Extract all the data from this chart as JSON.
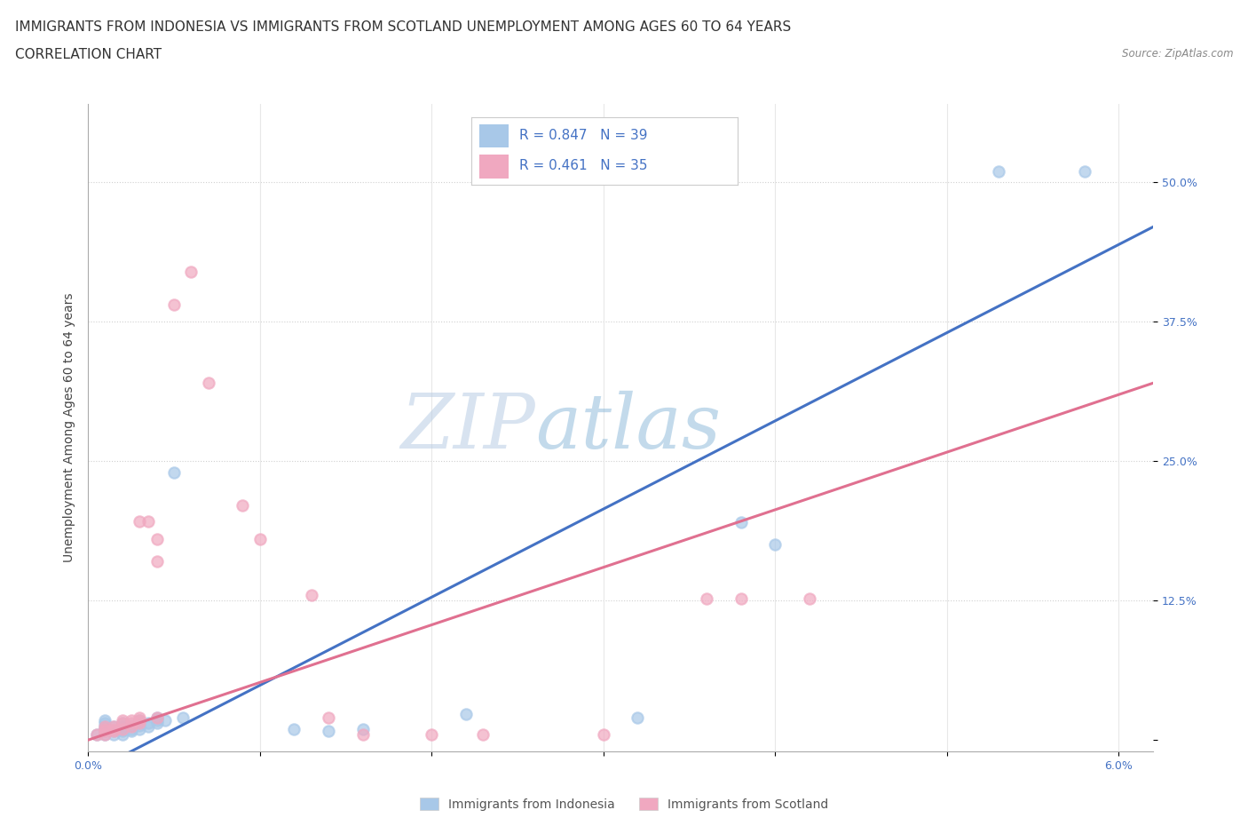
{
  "title_line1": "IMMIGRANTS FROM INDONESIA VS IMMIGRANTS FROM SCOTLAND UNEMPLOYMENT AMONG AGES 60 TO 64 YEARS",
  "title_line2": "CORRELATION CHART",
  "source_text": "Source: ZipAtlas.com",
  "ylabel": "Unemployment Among Ages 60 to 64 years",
  "xlim": [
    0.0,
    0.062
  ],
  "ylim": [
    -0.01,
    0.57
  ],
  "yticks": [
    0.0,
    0.125,
    0.25,
    0.375,
    0.5
  ],
  "ytick_labels": [
    "",
    "12.5%",
    "25.0%",
    "37.5%",
    "50.0%"
  ],
  "xticks": [
    0.0,
    0.01,
    0.02,
    0.03,
    0.04,
    0.05,
    0.06
  ],
  "xtick_labels": [
    "0.0%",
    "",
    "",
    "",
    "",
    "",
    "6.0%"
  ],
  "watermark_zip": "ZIP",
  "watermark_atlas": "atlas",
  "indonesia_color": "#a8c8e8",
  "scotland_color": "#f0a8c0",
  "line_blue": "#4472c4",
  "line_pink": "#e07090",
  "indonesia_scatter": [
    [
      0.0005,
      0.005
    ],
    [
      0.001,
      0.005
    ],
    [
      0.001,
      0.008
    ],
    [
      0.001,
      0.01
    ],
    [
      0.001,
      0.012
    ],
    [
      0.001,
      0.015
    ],
    [
      0.001,
      0.018
    ],
    [
      0.0015,
      0.005
    ],
    [
      0.0015,
      0.008
    ],
    [
      0.0015,
      0.012
    ],
    [
      0.002,
      0.005
    ],
    [
      0.002,
      0.008
    ],
    [
      0.002,
      0.01
    ],
    [
      0.002,
      0.012
    ],
    [
      0.002,
      0.015
    ],
    [
      0.0025,
      0.008
    ],
    [
      0.0025,
      0.01
    ],
    [
      0.0025,
      0.013
    ],
    [
      0.003,
      0.01
    ],
    [
      0.003,
      0.013
    ],
    [
      0.003,
      0.015
    ],
    [
      0.003,
      0.018
    ],
    [
      0.0035,
      0.012
    ],
    [
      0.0035,
      0.015
    ],
    [
      0.004,
      0.015
    ],
    [
      0.004,
      0.018
    ],
    [
      0.004,
      0.02
    ],
    [
      0.0045,
      0.018
    ],
    [
      0.005,
      0.24
    ],
    [
      0.0055,
      0.02
    ],
    [
      0.012,
      0.01
    ],
    [
      0.014,
      0.008
    ],
    [
      0.016,
      0.01
    ],
    [
      0.022,
      0.023
    ],
    [
      0.032,
      0.02
    ],
    [
      0.038,
      0.195
    ],
    [
      0.04,
      0.175
    ],
    [
      0.053,
      0.51
    ],
    [
      0.058,
      0.51
    ]
  ],
  "scotland_scatter": [
    [
      0.0005,
      0.005
    ],
    [
      0.001,
      0.005
    ],
    [
      0.001,
      0.008
    ],
    [
      0.001,
      0.01
    ],
    [
      0.001,
      0.012
    ],
    [
      0.0015,
      0.008
    ],
    [
      0.0015,
      0.01
    ],
    [
      0.0015,
      0.012
    ],
    [
      0.002,
      0.01
    ],
    [
      0.002,
      0.015
    ],
    [
      0.002,
      0.018
    ],
    [
      0.0025,
      0.012
    ],
    [
      0.0025,
      0.015
    ],
    [
      0.0025,
      0.018
    ],
    [
      0.003,
      0.015
    ],
    [
      0.003,
      0.018
    ],
    [
      0.003,
      0.02
    ],
    [
      0.003,
      0.196
    ],
    [
      0.0035,
      0.196
    ],
    [
      0.004,
      0.02
    ],
    [
      0.004,
      0.16
    ],
    [
      0.004,
      0.18
    ],
    [
      0.005,
      0.39
    ],
    [
      0.006,
      0.42
    ],
    [
      0.007,
      0.32
    ],
    [
      0.009,
      0.21
    ],
    [
      0.01,
      0.18
    ],
    [
      0.013,
      0.13
    ],
    [
      0.014,
      0.02
    ],
    [
      0.016,
      0.005
    ],
    [
      0.02,
      0.005
    ],
    [
      0.023,
      0.005
    ],
    [
      0.03,
      0.005
    ],
    [
      0.036,
      0.127
    ],
    [
      0.038,
      0.127
    ],
    [
      0.042,
      0.127
    ]
  ],
  "blue_line_x": [
    0.0,
    0.062
  ],
  "blue_line_y": [
    -0.03,
    0.46
  ],
  "pink_line_x": [
    0.0,
    0.062
  ],
  "pink_line_y": [
    0.0,
    0.32
  ],
  "background_color": "#ffffff",
  "grid_color_h": "#d0d0d0",
  "grid_color_v": "#e8e8e8",
  "title_fontsize": 11,
  "axis_label_fontsize": 10,
  "tick_fontsize": 9,
  "dot_size": 80,
  "dot_linewidth": 1.5
}
